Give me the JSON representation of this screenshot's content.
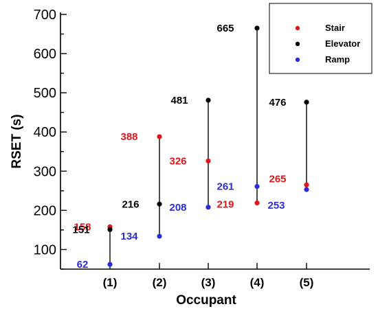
{
  "chart_data": {
    "type": "scatter",
    "xlabel": "Occupant",
    "ylabel": "RSET (s)",
    "ylim": [
      50,
      700
    ],
    "yticks": [
      100,
      200,
      300,
      400,
      500,
      600,
      700
    ],
    "categories": [
      "(1)",
      "(2)",
      "(3)",
      "(4)",
      "(5)"
    ],
    "series": [
      {
        "name": "Stair",
        "color": "#e0161b",
        "values": [
          158,
          388,
          326,
          219,
          265
        ]
      },
      {
        "name": "Elevator",
        "color": "#000000",
        "values": [
          151,
          216,
          481,
          665,
          476
        ]
      },
      {
        "name": "Ramp",
        "color": "#2b2bd9",
        "values": [
          62,
          134,
          208,
          261,
          253
        ]
      }
    ],
    "legend_position": "top-right",
    "grid": false
  }
}
